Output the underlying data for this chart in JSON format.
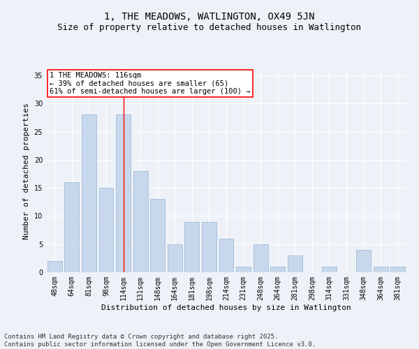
{
  "title_line1": "1, THE MEADOWS, WATLINGTON, OX49 5JN",
  "title_line2": "Size of property relative to detached houses in Watlington",
  "xlabel": "Distribution of detached houses by size in Watlington",
  "ylabel": "Number of detached properties",
  "categories": [
    "48sqm",
    "64sqm",
    "81sqm",
    "98sqm",
    "114sqm",
    "131sqm",
    "148sqm",
    "164sqm",
    "181sqm",
    "198sqm",
    "214sqm",
    "231sqm",
    "248sqm",
    "264sqm",
    "281sqm",
    "298sqm",
    "314sqm",
    "331sqm",
    "348sqm",
    "364sqm",
    "381sqm"
  ],
  "values": [
    2,
    16,
    28,
    15,
    28,
    18,
    13,
    5,
    9,
    9,
    6,
    1,
    5,
    1,
    3,
    0,
    1,
    0,
    4,
    1,
    1
  ],
  "bar_color": "#c8d8ec",
  "bar_edge_color": "#a0bcd8",
  "vline_color": "red",
  "vline_x": 4,
  "annotation_text": "1 THE MEADOWS: 116sqm\n← 39% of detached houses are smaller (65)\n61% of semi-detached houses are larger (100) →",
  "annotation_box_color": "white",
  "annotation_box_edge_color": "red",
  "ylim": [
    0,
    36
  ],
  "yticks": [
    0,
    5,
    10,
    15,
    20,
    25,
    30,
    35
  ],
  "background_color": "#eef2f8",
  "grid_color": "white",
  "footer_line1": "Contains HM Land Registry data © Crown copyright and database right 2025.",
  "footer_line2": "Contains public sector information licensed under the Open Government Licence v3.0.",
  "title_fontsize": 10,
  "subtitle_fontsize": 9,
  "axis_label_fontsize": 8,
  "tick_fontsize": 7,
  "annotation_fontsize": 7.5,
  "footer_fontsize": 6.5
}
